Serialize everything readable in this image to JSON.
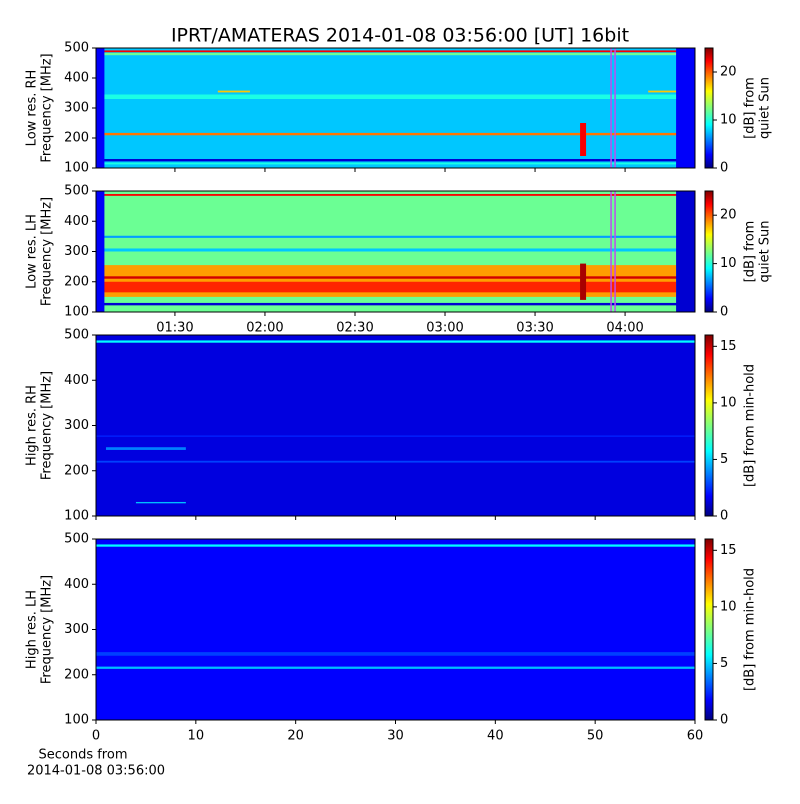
{
  "title": "IPRT/AMATERAS 2014-01-08 03:56:00 [UT]   16bit",
  "chart_data": [
    {
      "type": "heatmap",
      "ylabel": [
        "Low res. RH",
        "Frequency [MHz]"
      ],
      "xlim": [
        63.7,
        263.3
      ],
      "ylim": [
        100,
        500
      ],
      "yticks": [
        100,
        200,
        300,
        400,
        500
      ],
      "background": 8,
      "cells": [
        [
          63.7,
          263.3,
          486,
          492,
          22
        ],
        [
          63.7,
          263.3,
          476,
          484,
          12
        ],
        [
          63.7,
          263.3,
          209,
          217,
          19
        ],
        [
          63.7,
          263.3,
          122,
          130,
          2
        ],
        [
          63.7,
          263.3,
          112,
          118,
          10
        ],
        [
          63.7,
          263.3,
          330,
          345,
          10
        ],
        [
          104.3,
          115,
          352,
          358,
          17
        ],
        [
          247.7,
          257.7,
          352,
          358,
          17
        ],
        [
          225,
          227,
          140,
          250,
          22
        ],
        [
          63.7,
          66.5,
          100,
          500,
          3
        ],
        [
          257,
          263.3,
          100,
          500,
          3
        ]
      ],
      "marker": 236,
      "marker_color": "#c04cf0",
      "colorbar": {
        "label": [
          "[dB] from",
          "quiet Sun"
        ],
        "lim": [
          0,
          25
        ],
        "ticks": [
          0,
          10,
          20
        ]
      }
    },
    {
      "type": "heatmap",
      "ylabel": [
        "Low res. LH",
        "Frequency [MHz]"
      ],
      "xlim": [
        63.7,
        263.3
      ],
      "ylim": [
        100,
        500
      ],
      "yticks": [
        100,
        200,
        300,
        400,
        500
      ],
      "xticks": [
        {
          "value": 90,
          "label": "01:30"
        },
        {
          "value": 120,
          "label": "02:00"
        },
        {
          "value": 150,
          "label": "02:30"
        },
        {
          "value": 180,
          "label": "03:00"
        },
        {
          "value": 210,
          "label": "03:30"
        },
        {
          "value": 240,
          "label": "04:00"
        }
      ],
      "background": 12,
      "cells": [
        [
          63.7,
          257,
          150,
          255,
          18
        ],
        [
          63.7,
          257,
          165,
          200,
          21
        ],
        [
          63.7,
          263.3,
          210,
          218,
          23
        ],
        [
          63.7,
          263.3,
          122,
          130,
          2
        ],
        [
          63.7,
          263.3,
          484,
          490,
          22
        ],
        [
          63.7,
          263.3,
          300,
          310,
          8
        ],
        [
          63.7,
          263.3,
          345,
          352,
          7
        ],
        [
          225,
          227,
          140,
          260,
          24
        ],
        [
          63.7,
          66.5,
          100,
          500,
          3
        ],
        [
          257,
          263.3,
          100,
          500,
          2
        ]
      ],
      "marker": 236,
      "marker_color": "#c04cf0",
      "colorbar": {
        "label": [
          "[dB] from",
          "quiet Sun"
        ],
        "lim": [
          0,
          25
        ],
        "ticks": [
          0,
          10,
          20
        ]
      }
    },
    {
      "type": "heatmap",
      "ylabel": [
        "High res. RH",
        "Frequency [MHz]"
      ],
      "xlim": [
        0,
        60
      ],
      "ylim": [
        100,
        500
      ],
      "yticks": [
        100,
        200,
        300,
        400,
        500
      ],
      "background": 1.5,
      "cells": [
        [
          0,
          60,
          483,
          488,
          6
        ],
        [
          0,
          60,
          218,
          222,
          3
        ],
        [
          0,
          60,
          275,
          278,
          2.5
        ],
        [
          1,
          9,
          246,
          252,
          4
        ],
        [
          4,
          9,
          128,
          131,
          5
        ]
      ],
      "colorbar": {
        "label": [
          "[dB] from min-hold"
        ],
        "lim": [
          0,
          16
        ],
        "ticks": [
          0,
          5,
          10,
          15
        ]
      }
    },
    {
      "type": "heatmap",
      "ylabel": [
        "High res. LH",
        "Frequency [MHz]"
      ],
      "xlim": [
        0,
        60
      ],
      "ylim": [
        100,
        500
      ],
      "yticks": [
        100,
        200,
        300,
        400,
        500
      ],
      "xticks": [
        0,
        10,
        20,
        30,
        40,
        50,
        60
      ],
      "xlabel": [
        "Seconds from",
        "2014-01-08 03:56:00"
      ],
      "background": 2,
      "cells": [
        [
          0,
          60,
          483,
          488,
          6
        ],
        [
          0,
          60,
          213,
          218,
          5
        ],
        [
          0,
          60,
          242,
          250,
          3
        ]
      ],
      "colorbar": {
        "label": [
          "[dB] from min-hold"
        ],
        "lim": [
          0,
          16
        ],
        "ticks": [
          0,
          5,
          10,
          15
        ]
      }
    }
  ]
}
